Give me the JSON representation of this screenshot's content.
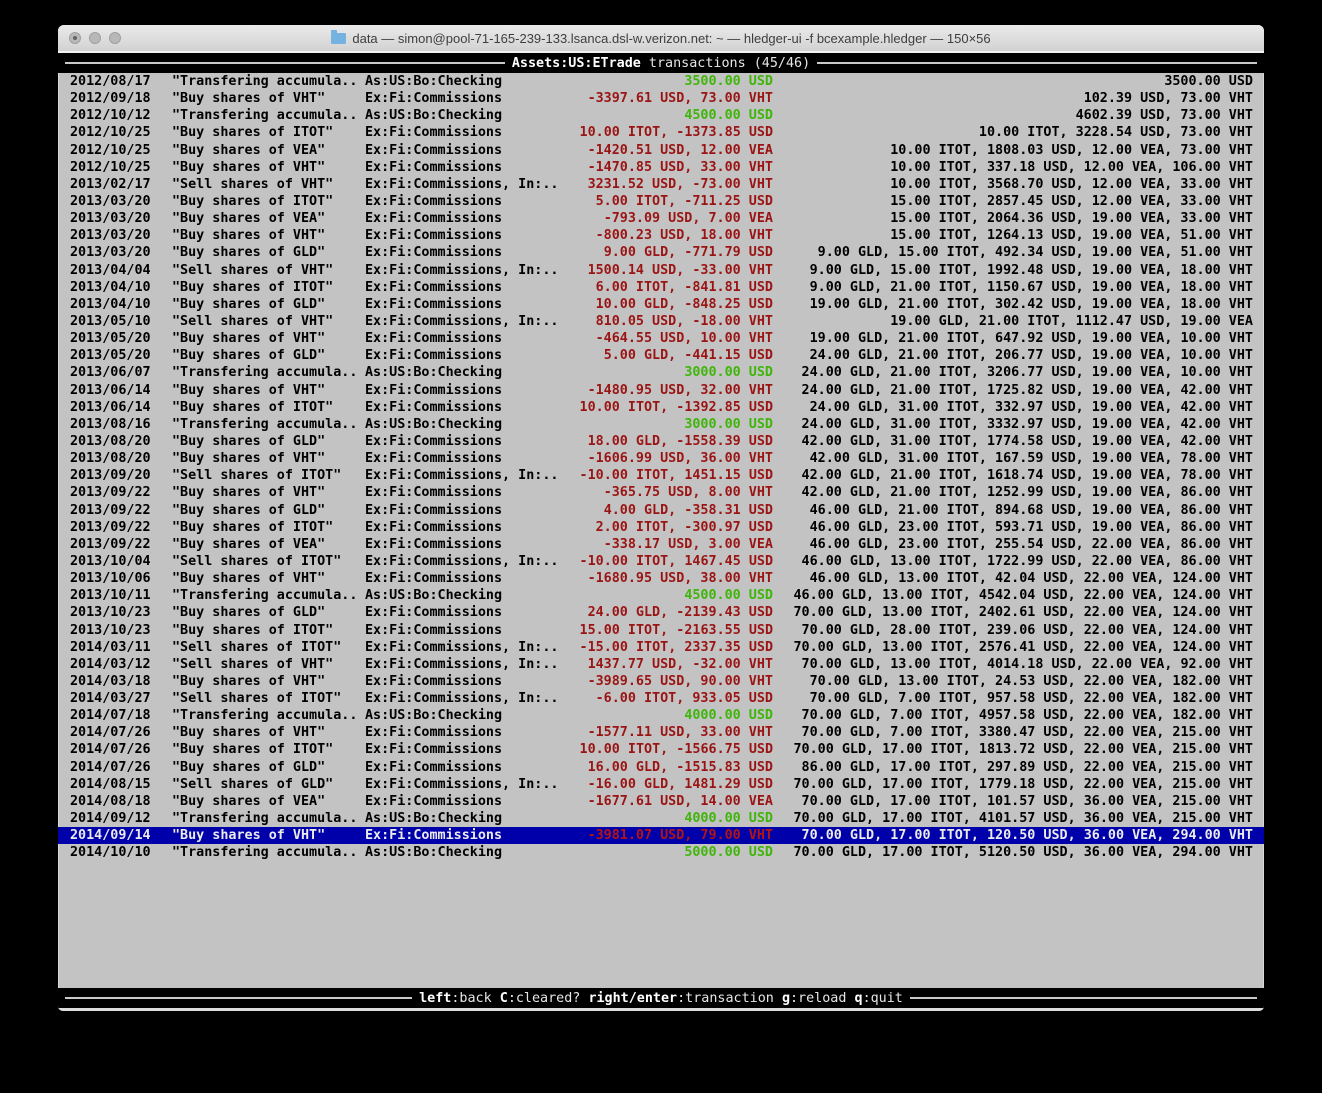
{
  "window": {
    "title": "data — simon@pool-71-165-239-133.lsanca.dsl-w.verizon.net: ~ — hledger-ui -f bcexample.hledger — 150×56"
  },
  "header": {
    "account": "Assets:US:ETrade",
    "subtitle": " transactions (45/46)"
  },
  "footer": {
    "keys": [
      {
        "key": "left",
        "label": ":back"
      },
      {
        "key": "C",
        "label": ":cleared?"
      },
      {
        "key": "right/enter",
        "label": ":transaction"
      },
      {
        "key": "g",
        "label": ":reload"
      },
      {
        "key": "q",
        "label": ":quit"
      }
    ]
  },
  "colors": {
    "terminal_bg": "#c3c3c3",
    "bar_bg": "#000000",
    "amount_negative": "#9b1414",
    "amount_positive": "#3fb50a",
    "selected_bg": "#0000aa",
    "selected_text": "#ebebeb"
  },
  "transactions": [
    {
      "date": "2012/08/17",
      "description": "\"Transfering accumula..",
      "accounts": "As:US:Bo:Checking",
      "change": "3500.00 USD",
      "change_sign": "pos",
      "balance": "3500.00 USD",
      "selected": false
    },
    {
      "date": "2012/09/18",
      "description": "\"Buy shares of VHT\"",
      "accounts": "Ex:Fi:Commissions",
      "change": "-3397.61 USD, 73.00 VHT",
      "change_sign": "neg",
      "balance": "102.39 USD, 73.00 VHT",
      "selected": false
    },
    {
      "date": "2012/10/12",
      "description": "\"Transfering accumula..",
      "accounts": "As:US:Bo:Checking",
      "change": "4500.00 USD",
      "change_sign": "pos",
      "balance": "4602.39 USD, 73.00 VHT",
      "selected": false
    },
    {
      "date": "2012/10/25",
      "description": "\"Buy shares of ITOT\"",
      "accounts": "Ex:Fi:Commissions",
      "change": "10.00 ITOT, -1373.85 USD",
      "change_sign": "neg",
      "balance": "10.00 ITOT, 3228.54 USD, 73.00 VHT",
      "selected": false
    },
    {
      "date": "2012/10/25",
      "description": "\"Buy shares of VEA\"",
      "accounts": "Ex:Fi:Commissions",
      "change": "-1420.51 USD, 12.00 VEA",
      "change_sign": "neg",
      "balance": "10.00 ITOT, 1808.03 USD, 12.00 VEA, 73.00 VHT",
      "selected": false
    },
    {
      "date": "2012/10/25",
      "description": "\"Buy shares of VHT\"",
      "accounts": "Ex:Fi:Commissions",
      "change": "-1470.85 USD, 33.00 VHT",
      "change_sign": "neg",
      "balance": "10.00 ITOT, 337.18 USD, 12.00 VEA, 106.00 VHT",
      "selected": false
    },
    {
      "date": "2013/02/17",
      "description": "\"Sell shares of VHT\"",
      "accounts": "Ex:Fi:Commissions, In:..",
      "change": "3231.52 USD, -73.00 VHT",
      "change_sign": "neg",
      "balance": "10.00 ITOT, 3568.70 USD, 12.00 VEA, 33.00 VHT",
      "selected": false
    },
    {
      "date": "2013/03/20",
      "description": "\"Buy shares of ITOT\"",
      "accounts": "Ex:Fi:Commissions",
      "change": "5.00 ITOT, -711.25 USD",
      "change_sign": "neg",
      "balance": "15.00 ITOT, 2857.45 USD, 12.00 VEA, 33.00 VHT",
      "selected": false
    },
    {
      "date": "2013/03/20",
      "description": "\"Buy shares of VEA\"",
      "accounts": "Ex:Fi:Commissions",
      "change": "-793.09 USD, 7.00 VEA",
      "change_sign": "neg",
      "balance": "15.00 ITOT, 2064.36 USD, 19.00 VEA, 33.00 VHT",
      "selected": false
    },
    {
      "date": "2013/03/20",
      "description": "\"Buy shares of VHT\"",
      "accounts": "Ex:Fi:Commissions",
      "change": "-800.23 USD, 18.00 VHT",
      "change_sign": "neg",
      "balance": "15.00 ITOT, 1264.13 USD, 19.00 VEA, 51.00 VHT",
      "selected": false
    },
    {
      "date": "2013/03/20",
      "description": "\"Buy shares of GLD\"",
      "accounts": "Ex:Fi:Commissions",
      "change": "9.00 GLD, -771.79 USD",
      "change_sign": "neg",
      "balance": "9.00 GLD, 15.00 ITOT, 492.34 USD, 19.00 VEA, 51.00 VHT",
      "selected": false
    },
    {
      "date": "2013/04/04",
      "description": "\"Sell shares of VHT\"",
      "accounts": "Ex:Fi:Commissions, In:..",
      "change": "1500.14 USD, -33.00 VHT",
      "change_sign": "neg",
      "balance": "9.00 GLD, 15.00 ITOT, 1992.48 USD, 19.00 VEA, 18.00 VHT",
      "selected": false
    },
    {
      "date": "2013/04/10",
      "description": "\"Buy shares of ITOT\"",
      "accounts": "Ex:Fi:Commissions",
      "change": "6.00 ITOT, -841.81 USD",
      "change_sign": "neg",
      "balance": "9.00 GLD, 21.00 ITOT, 1150.67 USD, 19.00 VEA, 18.00 VHT",
      "selected": false
    },
    {
      "date": "2013/04/10",
      "description": "\"Buy shares of GLD\"",
      "accounts": "Ex:Fi:Commissions",
      "change": "10.00 GLD, -848.25 USD",
      "change_sign": "neg",
      "balance": "19.00 GLD, 21.00 ITOT, 302.42 USD, 19.00 VEA, 18.00 VHT",
      "selected": false
    },
    {
      "date": "2013/05/10",
      "description": "\"Sell shares of VHT\"",
      "accounts": "Ex:Fi:Commissions, In:..",
      "change": "810.05 USD, -18.00 VHT",
      "change_sign": "neg",
      "balance": "19.00 GLD, 21.00 ITOT, 1112.47 USD, 19.00 VEA",
      "selected": false
    },
    {
      "date": "2013/05/20",
      "description": "\"Buy shares of VHT\"",
      "accounts": "Ex:Fi:Commissions",
      "change": "-464.55 USD, 10.00 VHT",
      "change_sign": "neg",
      "balance": "19.00 GLD, 21.00 ITOT, 647.92 USD, 19.00 VEA, 10.00 VHT",
      "selected": false
    },
    {
      "date": "2013/05/20",
      "description": "\"Buy shares of GLD\"",
      "accounts": "Ex:Fi:Commissions",
      "change": "5.00 GLD, -441.15 USD",
      "change_sign": "neg",
      "balance": "24.00 GLD, 21.00 ITOT, 206.77 USD, 19.00 VEA, 10.00 VHT",
      "selected": false
    },
    {
      "date": "2013/06/07",
      "description": "\"Transfering accumula..",
      "accounts": "As:US:Bo:Checking",
      "change": "3000.00 USD",
      "change_sign": "pos",
      "balance": "24.00 GLD, 21.00 ITOT, 3206.77 USD, 19.00 VEA, 10.00 VHT",
      "selected": false
    },
    {
      "date": "2013/06/14",
      "description": "\"Buy shares of VHT\"",
      "accounts": "Ex:Fi:Commissions",
      "change": "-1480.95 USD, 32.00 VHT",
      "change_sign": "neg",
      "balance": "24.00 GLD, 21.00 ITOT, 1725.82 USD, 19.00 VEA, 42.00 VHT",
      "selected": false
    },
    {
      "date": "2013/06/14",
      "description": "\"Buy shares of ITOT\"",
      "accounts": "Ex:Fi:Commissions",
      "change": "10.00 ITOT, -1392.85 USD",
      "change_sign": "neg",
      "balance": "24.00 GLD, 31.00 ITOT, 332.97 USD, 19.00 VEA, 42.00 VHT",
      "selected": false
    },
    {
      "date": "2013/08/16",
      "description": "\"Transfering accumula..",
      "accounts": "As:US:Bo:Checking",
      "change": "3000.00 USD",
      "change_sign": "pos",
      "balance": "24.00 GLD, 31.00 ITOT, 3332.97 USD, 19.00 VEA, 42.00 VHT",
      "selected": false
    },
    {
      "date": "2013/08/20",
      "description": "\"Buy shares of GLD\"",
      "accounts": "Ex:Fi:Commissions",
      "change": "18.00 GLD, -1558.39 USD",
      "change_sign": "neg",
      "balance": "42.00 GLD, 31.00 ITOT, 1774.58 USD, 19.00 VEA, 42.00 VHT",
      "selected": false
    },
    {
      "date": "2013/08/20",
      "description": "\"Buy shares of VHT\"",
      "accounts": "Ex:Fi:Commissions",
      "change": "-1606.99 USD, 36.00 VHT",
      "change_sign": "neg",
      "balance": "42.00 GLD, 31.00 ITOT, 167.59 USD, 19.00 VEA, 78.00 VHT",
      "selected": false
    },
    {
      "date": "2013/09/20",
      "description": "\"Sell shares of ITOT\"",
      "accounts": "Ex:Fi:Commissions, In:..",
      "change": "-10.00 ITOT, 1451.15 USD",
      "change_sign": "neg",
      "balance": "42.00 GLD, 21.00 ITOT, 1618.74 USD, 19.00 VEA, 78.00 VHT",
      "selected": false
    },
    {
      "date": "2013/09/22",
      "description": "\"Buy shares of VHT\"",
      "accounts": "Ex:Fi:Commissions",
      "change": "-365.75 USD, 8.00 VHT",
      "change_sign": "neg",
      "balance": "42.00 GLD, 21.00 ITOT, 1252.99 USD, 19.00 VEA, 86.00 VHT",
      "selected": false
    },
    {
      "date": "2013/09/22",
      "description": "\"Buy shares of GLD\"",
      "accounts": "Ex:Fi:Commissions",
      "change": "4.00 GLD, -358.31 USD",
      "change_sign": "neg",
      "balance": "46.00 GLD, 21.00 ITOT, 894.68 USD, 19.00 VEA, 86.00 VHT",
      "selected": false
    },
    {
      "date": "2013/09/22",
      "description": "\"Buy shares of ITOT\"",
      "accounts": "Ex:Fi:Commissions",
      "change": "2.00 ITOT, -300.97 USD",
      "change_sign": "neg",
      "balance": "46.00 GLD, 23.00 ITOT, 593.71 USD, 19.00 VEA, 86.00 VHT",
      "selected": false
    },
    {
      "date": "2013/09/22",
      "description": "\"Buy shares of VEA\"",
      "accounts": "Ex:Fi:Commissions",
      "change": "-338.17 USD, 3.00 VEA",
      "change_sign": "neg",
      "balance": "46.00 GLD, 23.00 ITOT, 255.54 USD, 22.00 VEA, 86.00 VHT",
      "selected": false
    },
    {
      "date": "2013/10/04",
      "description": "\"Sell shares of ITOT\"",
      "accounts": "Ex:Fi:Commissions, In:..",
      "change": "-10.00 ITOT, 1467.45 USD",
      "change_sign": "neg",
      "balance": "46.00 GLD, 13.00 ITOT, 1722.99 USD, 22.00 VEA, 86.00 VHT",
      "selected": false
    },
    {
      "date": "2013/10/06",
      "description": "\"Buy shares of VHT\"",
      "accounts": "Ex:Fi:Commissions",
      "change": "-1680.95 USD, 38.00 VHT",
      "change_sign": "neg",
      "balance": "46.00 GLD, 13.00 ITOT, 42.04 USD, 22.00 VEA, 124.00 VHT",
      "selected": false
    },
    {
      "date": "2013/10/11",
      "description": "\"Transfering accumula..",
      "accounts": "As:US:Bo:Checking",
      "change": "4500.00 USD",
      "change_sign": "pos",
      "balance": "46.00 GLD, 13.00 ITOT, 4542.04 USD, 22.00 VEA, 124.00 VHT",
      "selected": false
    },
    {
      "date": "2013/10/23",
      "description": "\"Buy shares of GLD\"",
      "accounts": "Ex:Fi:Commissions",
      "change": "24.00 GLD, -2139.43 USD",
      "change_sign": "neg",
      "balance": "70.00 GLD, 13.00 ITOT, 2402.61 USD, 22.00 VEA, 124.00 VHT",
      "selected": false
    },
    {
      "date": "2013/10/23",
      "description": "\"Buy shares of ITOT\"",
      "accounts": "Ex:Fi:Commissions",
      "change": "15.00 ITOT, -2163.55 USD",
      "change_sign": "neg",
      "balance": "70.00 GLD, 28.00 ITOT, 239.06 USD, 22.00 VEA, 124.00 VHT",
      "selected": false
    },
    {
      "date": "2014/03/11",
      "description": "\"Sell shares of ITOT\"",
      "accounts": "Ex:Fi:Commissions, In:..",
      "change": "-15.00 ITOT, 2337.35 USD",
      "change_sign": "neg",
      "balance": "70.00 GLD, 13.00 ITOT, 2576.41 USD, 22.00 VEA, 124.00 VHT",
      "selected": false
    },
    {
      "date": "2014/03/12",
      "description": "\"Sell shares of VHT\"",
      "accounts": "Ex:Fi:Commissions, In:..",
      "change": "1437.77 USD, -32.00 VHT",
      "change_sign": "neg",
      "balance": "70.00 GLD, 13.00 ITOT, 4014.18 USD, 22.00 VEA, 92.00 VHT",
      "selected": false
    },
    {
      "date": "2014/03/18",
      "description": "\"Buy shares of VHT\"",
      "accounts": "Ex:Fi:Commissions",
      "change": "-3989.65 USD, 90.00 VHT",
      "change_sign": "neg",
      "balance": "70.00 GLD, 13.00 ITOT, 24.53 USD, 22.00 VEA, 182.00 VHT",
      "selected": false
    },
    {
      "date": "2014/03/27",
      "description": "\"Sell shares of ITOT\"",
      "accounts": "Ex:Fi:Commissions, In:..",
      "change": "-6.00 ITOT, 933.05 USD",
      "change_sign": "neg",
      "balance": "70.00 GLD, 7.00 ITOT, 957.58 USD, 22.00 VEA, 182.00 VHT",
      "selected": false
    },
    {
      "date": "2014/07/18",
      "description": "\"Transfering accumula..",
      "accounts": "As:US:Bo:Checking",
      "change": "4000.00 USD",
      "change_sign": "pos",
      "balance": "70.00 GLD, 7.00 ITOT, 4957.58 USD, 22.00 VEA, 182.00 VHT",
      "selected": false
    },
    {
      "date": "2014/07/26",
      "description": "\"Buy shares of VHT\"",
      "accounts": "Ex:Fi:Commissions",
      "change": "-1577.11 USD, 33.00 VHT",
      "change_sign": "neg",
      "balance": "70.00 GLD, 7.00 ITOT, 3380.47 USD, 22.00 VEA, 215.00 VHT",
      "selected": false
    },
    {
      "date": "2014/07/26",
      "description": "\"Buy shares of ITOT\"",
      "accounts": "Ex:Fi:Commissions",
      "change": "10.00 ITOT, -1566.75 USD",
      "change_sign": "neg",
      "balance": "70.00 GLD, 17.00 ITOT, 1813.72 USD, 22.00 VEA, 215.00 VHT",
      "selected": false
    },
    {
      "date": "2014/07/26",
      "description": "\"Buy shares of GLD\"",
      "accounts": "Ex:Fi:Commissions",
      "change": "16.00 GLD, -1515.83 USD",
      "change_sign": "neg",
      "balance": "86.00 GLD, 17.00 ITOT, 297.89 USD, 22.00 VEA, 215.00 VHT",
      "selected": false
    },
    {
      "date": "2014/08/15",
      "description": "\"Sell shares of GLD\"",
      "accounts": "Ex:Fi:Commissions, In:..",
      "change": "-16.00 GLD, 1481.29 USD",
      "change_sign": "neg",
      "balance": "70.00 GLD, 17.00 ITOT, 1779.18 USD, 22.00 VEA, 215.00 VHT",
      "selected": false
    },
    {
      "date": "2014/08/18",
      "description": "\"Buy shares of VEA\"",
      "accounts": "Ex:Fi:Commissions",
      "change": "-1677.61 USD, 14.00 VEA",
      "change_sign": "neg",
      "balance": "70.00 GLD, 17.00 ITOT, 101.57 USD, 36.00 VEA, 215.00 VHT",
      "selected": false
    },
    {
      "date": "2014/09/12",
      "description": "\"Transfering accumula..",
      "accounts": "As:US:Bo:Checking",
      "change": "4000.00 USD",
      "change_sign": "pos",
      "balance": "70.00 GLD, 17.00 ITOT, 4101.57 USD, 36.00 VEA, 215.00 VHT",
      "selected": false
    },
    {
      "date": "2014/09/14",
      "description": "\"Buy shares of VHT\"",
      "accounts": "Ex:Fi:Commissions",
      "change": "-3981.07 USD, 79.00 VHT",
      "change_sign": "neg",
      "balance": "70.00 GLD, 17.00 ITOT, 120.50 USD, 36.00 VEA, 294.00 VHT",
      "selected": true
    },
    {
      "date": "2014/10/10",
      "description": "\"Transfering accumula..",
      "accounts": "As:US:Bo:Checking",
      "change": "5000.00 USD",
      "change_sign": "pos",
      "balance": "70.00 GLD, 17.00 ITOT, 5120.50 USD, 36.00 VEA, 294.00 VHT",
      "selected": false
    }
  ]
}
